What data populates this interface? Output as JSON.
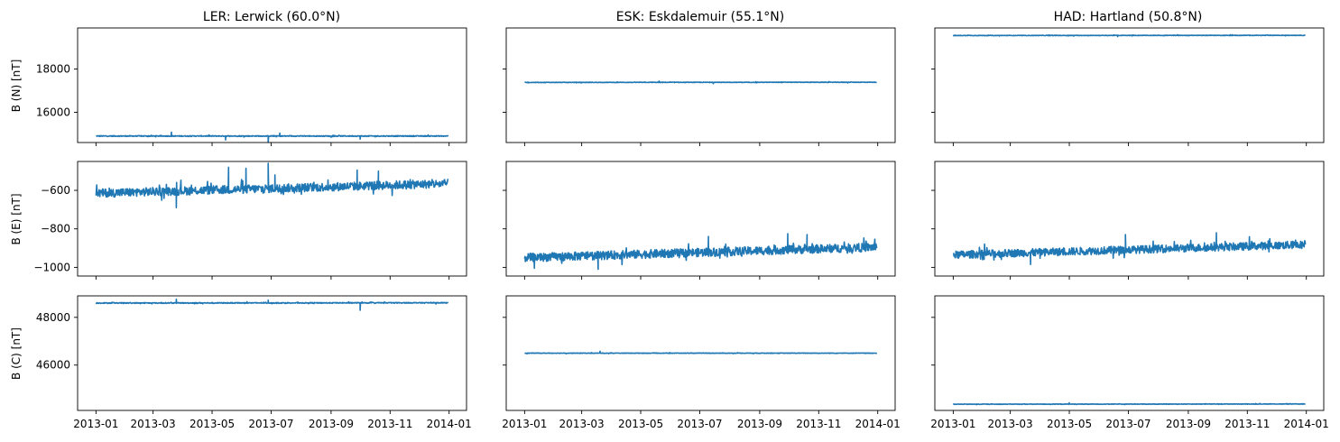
{
  "columns": [
    {
      "title": "LER: Lerwick (60.0°N)"
    },
    {
      "title": "ESK: Eskdalemuir (55.1°N)"
    },
    {
      "title": "HAD: Hartland (50.8°N)"
    }
  ],
  "rows": [
    {
      "ylabel": "B (N) [nT]"
    },
    {
      "ylabel": "B (E) [nT]"
    },
    {
      "ylabel": "B (C) [nT]"
    }
  ],
  "x_tick_labels": [
    "2013-01",
    "2013-03",
    "2013-05",
    "2013-07",
    "2013-09",
    "2013-11",
    "2014-01"
  ],
  "colors": {
    "series": "#1f77b4"
  },
  "chart_data": [
    {
      "type": "line",
      "panel": "B (N) — LER",
      "row": 0,
      "col": 0,
      "xlim": [
        "2012-12-13",
        "2014-01-19"
      ],
      "ylim": [
        14600,
        19900
      ],
      "y_ticks": [
        16000,
        18000
      ],
      "y_tick_labels": [
        "16000",
        "18000"
      ],
      "series": [
        {
          "base_start": 14900,
          "base_end": 14900,
          "noise": 20,
          "spikes": [
            {
              "x": "2013-03-20",
              "y": 15080
            },
            {
              "x": "2013-05-15",
              "y": 14720
            },
            {
              "x": "2013-06-28",
              "y": 14560
            },
            {
              "x": "2013-07-10",
              "y": 15030
            },
            {
              "x": "2013-10-01",
              "y": 14760
            }
          ]
        }
      ]
    },
    {
      "type": "line",
      "panel": "B (N) — ESK",
      "row": 0,
      "col": 1,
      "xlim": [
        "2012-12-13",
        "2014-01-19"
      ],
      "ylim": [
        14600,
        19900
      ],
      "y_ticks": [
        16000,
        18000
      ],
      "y_tick_labels": [],
      "series": [
        {
          "base_start": 17380,
          "base_end": 17390,
          "noise": 12,
          "spikes": [
            {
              "x": "2013-05-20",
              "y": 17440
            },
            {
              "x": "2013-07-15",
              "y": 17320
            }
          ]
        }
      ]
    },
    {
      "type": "line",
      "panel": "B (N) — HAD",
      "row": 0,
      "col": 2,
      "xlim": [
        "2012-12-13",
        "2014-01-19"
      ],
      "ylim": [
        14600,
        19900
      ],
      "y_ticks": [
        16000,
        18000
      ],
      "y_tick_labels": [],
      "series": [
        {
          "base_start": 19550,
          "base_end": 19560,
          "noise": 12,
          "spikes": [
            {
              "x": "2013-06-20",
              "y": 19500
            }
          ]
        }
      ]
    },
    {
      "type": "line",
      "panel": "B (E) — LER",
      "row": 1,
      "col": 0,
      "xlim": [
        "2012-12-13",
        "2014-01-19"
      ],
      "ylim": [
        -1045,
        -450
      ],
      "y_ticks": [
        -1000,
        -800,
        -600
      ],
      "y_tick_labels": [
        "−1000",
        "−800",
        "−600"
      ],
      "series": [
        {
          "base_start": -615,
          "base_end": -565,
          "noise": 22,
          "spikes": [
            {
              "x": "2013-03-25",
              "y": -690
            },
            {
              "x": "2013-05-18",
              "y": -480
            },
            {
              "x": "2013-06-05",
              "y": -485
            },
            {
              "x": "2013-06-28",
              "y": -460
            },
            {
              "x": "2013-07-05",
              "y": -520
            },
            {
              "x": "2013-09-28",
              "y": -495
            },
            {
              "x": "2013-10-20",
              "y": -500
            }
          ]
        }
      ]
    },
    {
      "type": "line",
      "panel": "B (E) — ESK",
      "row": 1,
      "col": 1,
      "xlim": [
        "2012-12-13",
        "2014-01-19"
      ],
      "ylim": [
        -1045,
        -450
      ],
      "y_ticks": [
        -1000,
        -800,
        -600
      ],
      "y_tick_labels": [],
      "series": [
        {
          "base_start": -950,
          "base_end": -895,
          "noise": 22,
          "spikes": [
            {
              "x": "2013-03-18",
              "y": -1010
            },
            {
              "x": "2013-07-10",
              "y": -840
            },
            {
              "x": "2013-09-30",
              "y": -825
            },
            {
              "x": "2013-10-20",
              "y": -830
            }
          ]
        }
      ]
    },
    {
      "type": "line",
      "panel": "B (E) — HAD",
      "row": 1,
      "col": 2,
      "xlim": [
        "2012-12-13",
        "2014-01-19"
      ],
      "ylim": [
        -1045,
        -450
      ],
      "y_ticks": [
        -1000,
        -800,
        -600
      ],
      "y_tick_labels": [],
      "series": [
        {
          "base_start": -935,
          "base_end": -882,
          "noise": 20,
          "spikes": [
            {
              "x": "2013-03-22",
              "y": -985
            },
            {
              "x": "2013-06-28",
              "y": -830
            },
            {
              "x": "2013-09-30",
              "y": -820
            }
          ]
        }
      ]
    },
    {
      "type": "line",
      "panel": "B (C) — LER",
      "row": 2,
      "col": 0,
      "xlim": [
        "2012-12-13",
        "2014-01-19"
      ],
      "ylim": [
        44100,
        48900
      ],
      "y_ticks": [
        46000,
        48000
      ],
      "y_tick_labels": [
        "46000",
        "48000"
      ],
      "series": [
        {
          "base_start": 48600,
          "base_end": 48610,
          "noise": 18,
          "spikes": [
            {
              "x": "2013-03-25",
              "y": 48760
            },
            {
              "x": "2013-06-28",
              "y": 48720
            },
            {
              "x": "2013-10-01",
              "y": 48300
            }
          ]
        }
      ]
    },
    {
      "type": "line",
      "panel": "B (C) — ESK",
      "row": 2,
      "col": 1,
      "xlim": [
        "2012-12-13",
        "2014-01-19"
      ],
      "ylim": [
        44100,
        48900
      ],
      "y_ticks": [
        46000,
        48000
      ],
      "y_tick_labels": [],
      "series": [
        {
          "base_start": 46500,
          "base_end": 46500,
          "noise": 10,
          "spikes": [
            {
              "x": "2013-03-20",
              "y": 46580
            }
          ]
        }
      ]
    },
    {
      "type": "line",
      "panel": "B (C) — HAD",
      "row": 2,
      "col": 2,
      "xlim": [
        "2012-12-13",
        "2014-01-19"
      ],
      "ylim": [
        44100,
        48900
      ],
      "y_ticks": [
        46000,
        48000
      ],
      "y_tick_labels": [],
      "series": [
        {
          "base_start": 44360,
          "base_end": 44370,
          "noise": 10,
          "spikes": [
            {
              "x": "2013-05-01",
              "y": 44420
            }
          ]
        }
      ]
    }
  ]
}
